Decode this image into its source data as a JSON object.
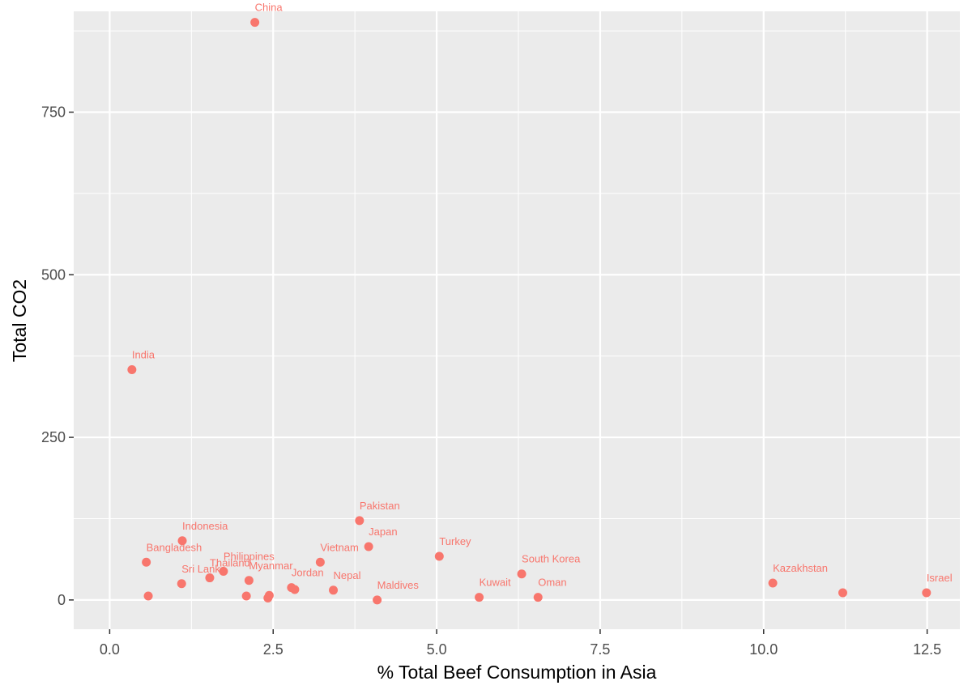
{
  "chart_data": {
    "type": "scatter",
    "xlabel": "% Total Beef Consumption in Asia",
    "ylabel": "Total CO2",
    "xlim": [
      -0.55,
      13.0
    ],
    "ylim": [
      -45,
      905
    ],
    "x_ticks": [
      {
        "value": 0.0,
        "label": "0.0"
      },
      {
        "value": 2.5,
        "label": "2.5"
      },
      {
        "value": 5.0,
        "label": "5.0"
      },
      {
        "value": 7.5,
        "label": "7.5"
      },
      {
        "value": 10.0,
        "label": "10.0"
      },
      {
        "value": 12.5,
        "label": "12.5"
      }
    ],
    "y_ticks": [
      {
        "value": 0,
        "label": "0"
      },
      {
        "value": 250,
        "label": "250"
      },
      {
        "value": 500,
        "label": "500"
      },
      {
        "value": 750,
        "label": "750"
      }
    ],
    "grid": true,
    "colors": {
      "panel": "#ebebeb",
      "grid": "#ffffff",
      "point": "#f8766d",
      "tick": "#333333"
    },
    "points": [
      {
        "label": "China",
        "x": 2.22,
        "y": 888
      },
      {
        "label": "India",
        "x": 0.34,
        "y": 354
      },
      {
        "label": "Pakistan",
        "x": 3.82,
        "y": 122
      },
      {
        "label": "Indonesia",
        "x": 1.11,
        "y": 91
      },
      {
        "label": "Japan",
        "x": 3.96,
        "y": 82
      },
      {
        "label": "Turkey",
        "x": 5.04,
        "y": 67
      },
      {
        "label": "Bangladesh",
        "x": 0.56,
        "y": 58
      },
      {
        "label": "Vietnam",
        "x": 3.22,
        "y": 58
      },
      {
        "label": "Philippines",
        "x": 1.74,
        "y": 44
      },
      {
        "label": "South Korea",
        "x": 6.3,
        "y": 40
      },
      {
        "label": "Thailand",
        "x": 1.53,
        "y": 34
      },
      {
        "label": "Myanmar",
        "x": 2.13,
        "y": 30
      },
      {
        "label": "Kazakhstan",
        "x": 10.14,
        "y": 26
      },
      {
        "label": "Sri Lanka",
        "x": 1.1,
        "y": 25
      },
      {
        "label": "Jordan",
        "x": 2.78,
        "y": 19
      },
      {
        "label": "",
        "x": 2.83,
        "y": 16
      },
      {
        "label": "Nepal",
        "x": 3.42,
        "y": 15
      },
      {
        "label": "",
        "x": 11.21,
        "y": 11
      },
      {
        "label": "Israel",
        "x": 12.49,
        "y": 11
      },
      {
        "label": "",
        "x": 2.09,
        "y": 6
      },
      {
        "label": "",
        "x": 2.44,
        "y": 7
      },
      {
        "label": "",
        "x": 2.42,
        "y": 3
      },
      {
        "label": "",
        "x": 0.59,
        "y": 6
      },
      {
        "label": "Kuwait",
        "x": 5.65,
        "y": 4
      },
      {
        "label": "Oman",
        "x": 6.55,
        "y": 4
      },
      {
        "label": "Maldives",
        "x": 4.09,
        "y": 0
      }
    ]
  }
}
